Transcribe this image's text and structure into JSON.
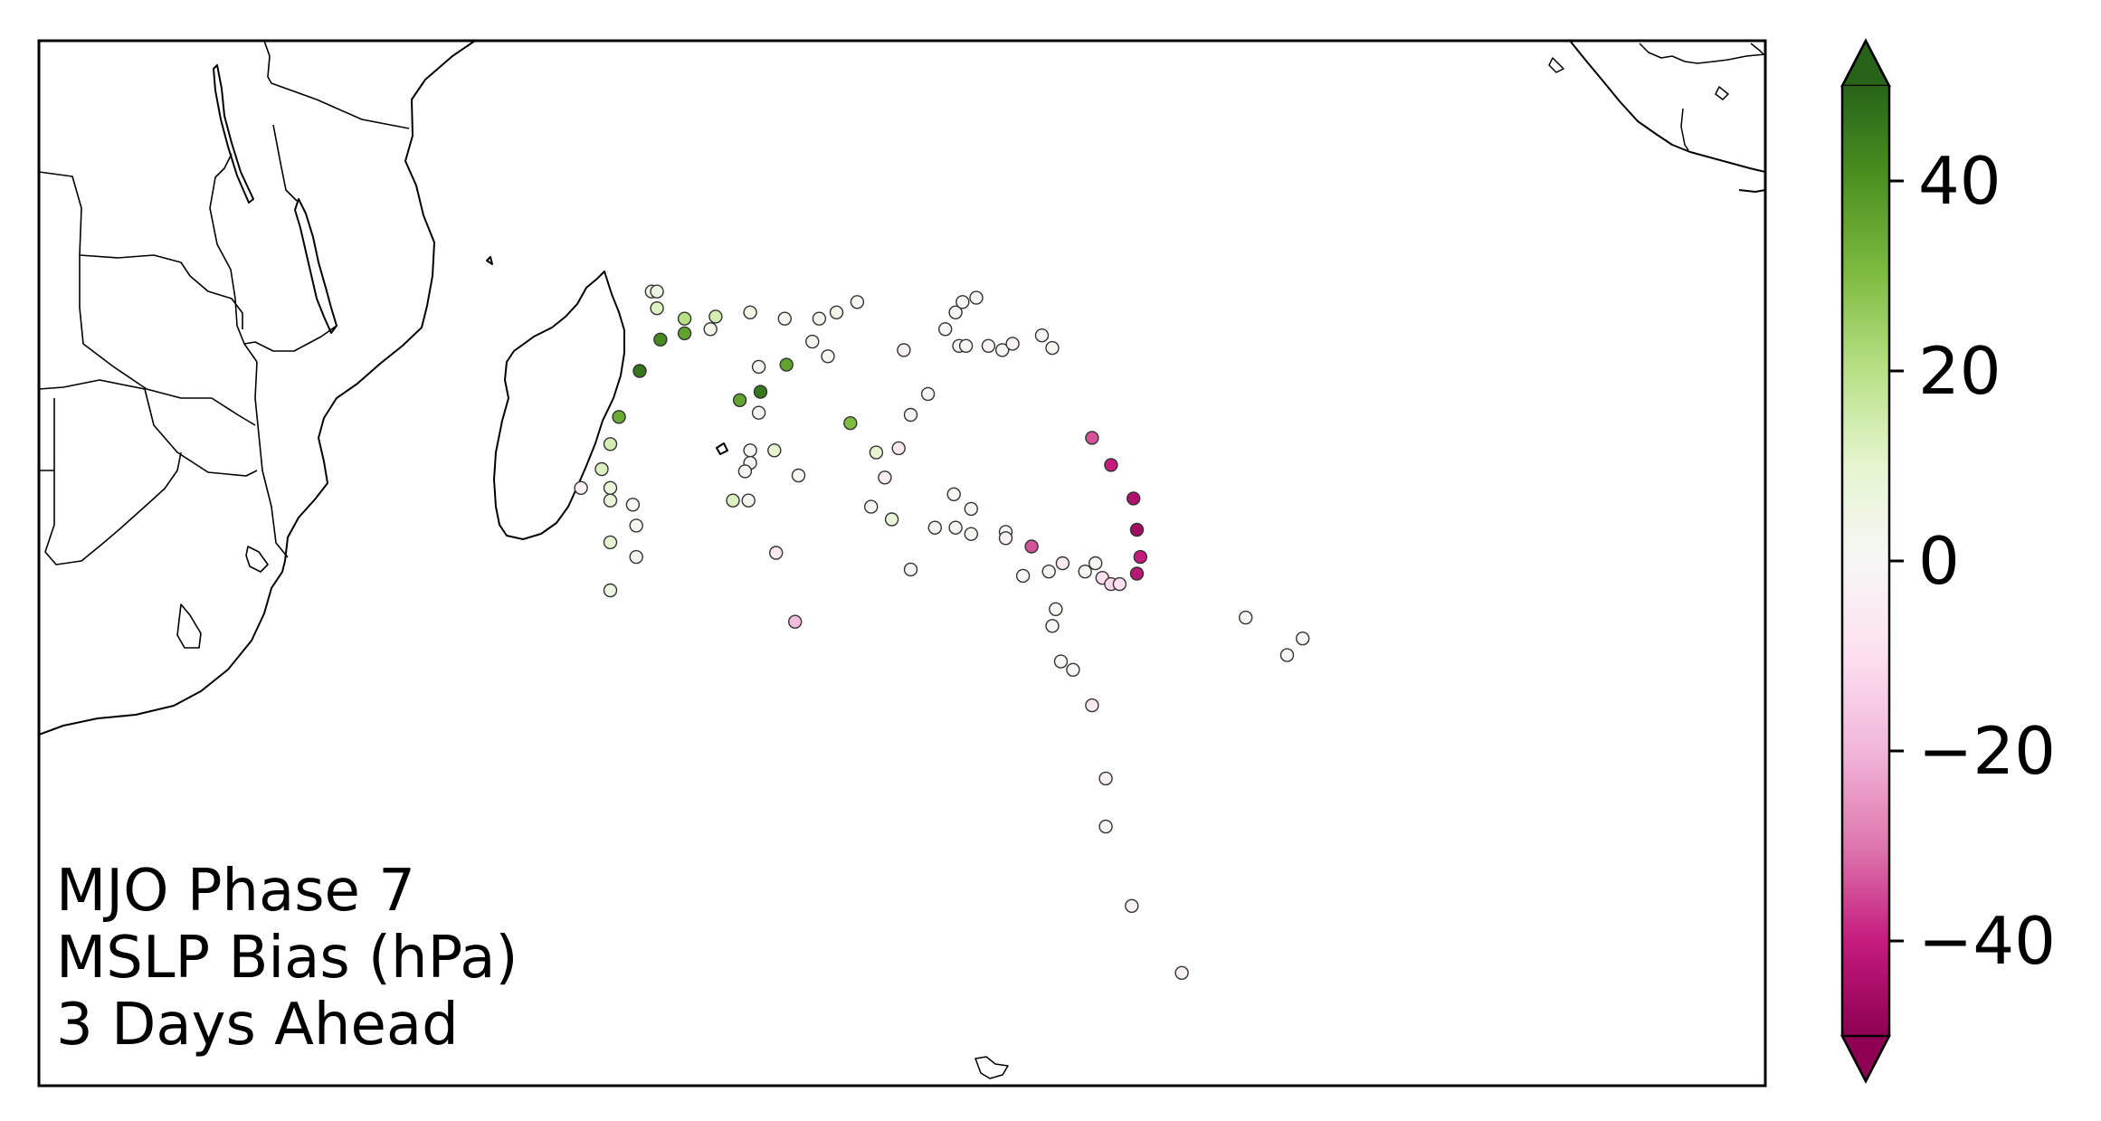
{
  "annotation": {
    "line1": "MJO Phase 7",
    "line2": "MSLP Bias (hPa)",
    "line3": "3 Days Ahead"
  },
  "colors": {
    "coast": "#000000",
    "frame": "#000000",
    "marker_edge": "#333333",
    "colormap": [
      "#8e0152",
      "#c51b7d",
      "#de77ae",
      "#f1b6da",
      "#fde0ef",
      "#f7f7f7",
      "#e6f5d0",
      "#b8e186",
      "#7fbc41",
      "#4d9221",
      "#276419"
    ]
  },
  "colorbar": {
    "min": -50,
    "max": 50,
    "extend": "both",
    "ticks": [
      {
        "value": 40,
        "label": "40"
      },
      {
        "value": 20,
        "label": "20"
      },
      {
        "value": 0,
        "label": "0"
      },
      {
        "value": -20,
        "label": "−20"
      },
      {
        "value": -40,
        "label": "−40"
      }
    ]
  },
  "map": {
    "lon_range": [
      25,
      125
    ],
    "lat_range": [
      -45,
      5
    ]
  },
  "points": [
    {
      "lon": 60.5,
      "lat": -7.0,
      "v": 6
    },
    {
      "lon": 60.8,
      "lat": -7.0,
      "v": 4
    },
    {
      "lon": 60.8,
      "lat": -7.8,
      "v": 12
    },
    {
      "lon": 62.4,
      "lat": -8.3,
      "v": 20
    },
    {
      "lon": 64.2,
      "lat": -8.2,
      "v": 14
    },
    {
      "lon": 63.9,
      "lat": -8.8,
      "v": 3
    },
    {
      "lon": 66.2,
      "lat": -8.0,
      "v": 5
    },
    {
      "lon": 68.2,
      "lat": -8.3,
      "v": 2
    },
    {
      "lon": 70.2,
      "lat": -8.3,
      "v": 2
    },
    {
      "lon": 71.2,
      "lat": -8.0,
      "v": 4
    },
    {
      "lon": 72.4,
      "lat": -7.5,
      "v": 2
    },
    {
      "lon": 61.0,
      "lat": -9.3,
      "v": 42
    },
    {
      "lon": 62.4,
      "lat": -9.0,
      "v": 36
    },
    {
      "lon": 59.8,
      "lat": -10.8,
      "v": 46
    },
    {
      "lon": 58.6,
      "lat": -13.0,
      "v": 34
    },
    {
      "lon": 58.1,
      "lat": -14.3,
      "v": 14
    },
    {
      "lon": 57.6,
      "lat": -15.5,
      "v": 12
    },
    {
      "lon": 58.1,
      "lat": -16.4,
      "v": 8
    },
    {
      "lon": 58.1,
      "lat": -17.0,
      "v": 8
    },
    {
      "lon": 56.4,
      "lat": -16.4,
      "v": -4
    },
    {
      "lon": 59.4,
      "lat": -17.2,
      "v": 1
    },
    {
      "lon": 59.6,
      "lat": -18.2,
      "v": 2
    },
    {
      "lon": 58.1,
      "lat": -19.0,
      "v": 10
    },
    {
      "lon": 59.6,
      "lat": -19.7,
      "v": 2
    },
    {
      "lon": 58.1,
      "lat": -21.3,
      "v": 6
    },
    {
      "lon": 65.6,
      "lat": -12.2,
      "v": 36
    },
    {
      "lon": 66.8,
      "lat": -11.8,
      "v": 46
    },
    {
      "lon": 68.3,
      "lat": -10.5,
      "v": 36
    },
    {
      "lon": 66.7,
      "lat": -10.6,
      "v": 2
    },
    {
      "lon": 66.7,
      "lat": -12.8,
      "v": 1
    },
    {
      "lon": 67.6,
      "lat": -14.6,
      "v": 10
    },
    {
      "lon": 66.2,
      "lat": -14.6,
      "v": 1
    },
    {
      "lon": 66.2,
      "lat": -15.2,
      "v": 1
    },
    {
      "lon": 65.9,
      "lat": -15.6,
      "v": 1
    },
    {
      "lon": 65.2,
      "lat": -17.0,
      "v": 12
    },
    {
      "lon": 66.1,
      "lat": -17.0,
      "v": 2
    },
    {
      "lon": 69.0,
      "lat": -15.8,
      "v": 1
    },
    {
      "lon": 67.7,
      "lat": -19.5,
      "v": -6
    },
    {
      "lon": 68.8,
      "lat": -22.8,
      "v": -18
    },
    {
      "lon": 69.8,
      "lat": -9.4,
      "v": 2
    },
    {
      "lon": 70.7,
      "lat": -10.1,
      "v": 1
    },
    {
      "lon": 72.0,
      "lat": -13.3,
      "v": 30
    },
    {
      "lon": 73.5,
      "lat": -14.7,
      "v": 10
    },
    {
      "lon": 74.8,
      "lat": -14.5,
      "v": -6
    },
    {
      "lon": 74.0,
      "lat": -15.9,
      "v": -3
    },
    {
      "lon": 73.2,
      "lat": -17.3,
      "v": 1
    },
    {
      "lon": 74.4,
      "lat": -17.9,
      "v": 8
    },
    {
      "lon": 75.5,
      "lat": -12.9,
      "v": 1
    },
    {
      "lon": 76.5,
      "lat": -11.9,
      "v": 1
    },
    {
      "lon": 75.1,
      "lat": -9.8,
      "v": -4
    },
    {
      "lon": 77.5,
      "lat": -8.8,
      "v": 1
    },
    {
      "lon": 78.1,
      "lat": -8.0,
      "v": 1
    },
    {
      "lon": 78.5,
      "lat": -7.5,
      "v": 1
    },
    {
      "lon": 79.3,
      "lat": -7.3,
      "v": 1
    },
    {
      "lon": 78.3,
      "lat": -9.6,
      "v": 1
    },
    {
      "lon": 78.7,
      "lat": -9.6,
      "v": 1
    },
    {
      "lon": 80.0,
      "lat": -9.6,
      "v": -2
    },
    {
      "lon": 80.8,
      "lat": -9.8,
      "v": 1
    },
    {
      "lon": 81.4,
      "lat": -9.5,
      "v": -2
    },
    {
      "lon": 83.1,
      "lat": -9.1,
      "v": 1
    },
    {
      "lon": 83.7,
      "lat": -9.7,
      "v": 1
    },
    {
      "lon": 78.0,
      "lat": -16.7,
      "v": 1
    },
    {
      "lon": 79.0,
      "lat": -17.4,
      "v": 1
    },
    {
      "lon": 76.9,
      "lat": -18.3,
      "v": 1
    },
    {
      "lon": 78.1,
      "lat": -18.3,
      "v": 1
    },
    {
      "lon": 79.0,
      "lat": -18.6,
      "v": 1
    },
    {
      "lon": 75.5,
      "lat": -20.3,
      "v": 1
    },
    {
      "lon": 81.0,
      "lat": -18.5,
      "v": 1
    },
    {
      "lon": 81.0,
      "lat": -18.8,
      "v": -3
    },
    {
      "lon": 82.5,
      "lat": -19.2,
      "v": -34
    },
    {
      "lon": 82.0,
      "lat": -20.6,
      "v": 1
    },
    {
      "lon": 83.5,
      "lat": -20.4,
      "v": 1
    },
    {
      "lon": 84.3,
      "lat": -20.0,
      "v": -6
    },
    {
      "lon": 85.6,
      "lat": -20.4,
      "v": 1
    },
    {
      "lon": 86.2,
      "lat": -20.0,
      "v": 1
    },
    {
      "lon": 86.6,
      "lat": -20.7,
      "v": -10
    },
    {
      "lon": 87.1,
      "lat": -21.0,
      "v": -12
    },
    {
      "lon": 87.6,
      "lat": -21.0,
      "v": -10
    },
    {
      "lon": 86.0,
      "lat": -14.0,
      "v": -34
    },
    {
      "lon": 87.1,
      "lat": -15.3,
      "v": -40
    },
    {
      "lon": 88.4,
      "lat": -16.9,
      "v": -44
    },
    {
      "lon": 88.6,
      "lat": -18.4,
      "v": -46
    },
    {
      "lon": 88.8,
      "lat": -19.7,
      "v": -40
    },
    {
      "lon": 88.6,
      "lat": -20.5,
      "v": -42
    },
    {
      "lon": 83.9,
      "lat": -22.2,
      "v": 1
    },
    {
      "lon": 83.7,
      "lat": -23.0,
      "v": 1
    },
    {
      "lon": 84.2,
      "lat": -24.7,
      "v": 1
    },
    {
      "lon": 84.9,
      "lat": -25.1,
      "v": 1
    },
    {
      "lon": 86.0,
      "lat": -26.8,
      "v": -6
    },
    {
      "lon": 86.8,
      "lat": -30.3,
      "v": -4
    },
    {
      "lon": 86.8,
      "lat": -32.6,
      "v": 1
    },
    {
      "lon": 88.3,
      "lat": -36.4,
      "v": -2
    },
    {
      "lon": 91.2,
      "lat": -39.6,
      "v": -2
    },
    {
      "lon": 94.9,
      "lat": -22.6,
      "v": 1
    },
    {
      "lon": 97.3,
      "lat": -24.4,
      "v": 1
    },
    {
      "lon": 98.2,
      "lat": -23.6,
      "v": 1
    }
  ]
}
